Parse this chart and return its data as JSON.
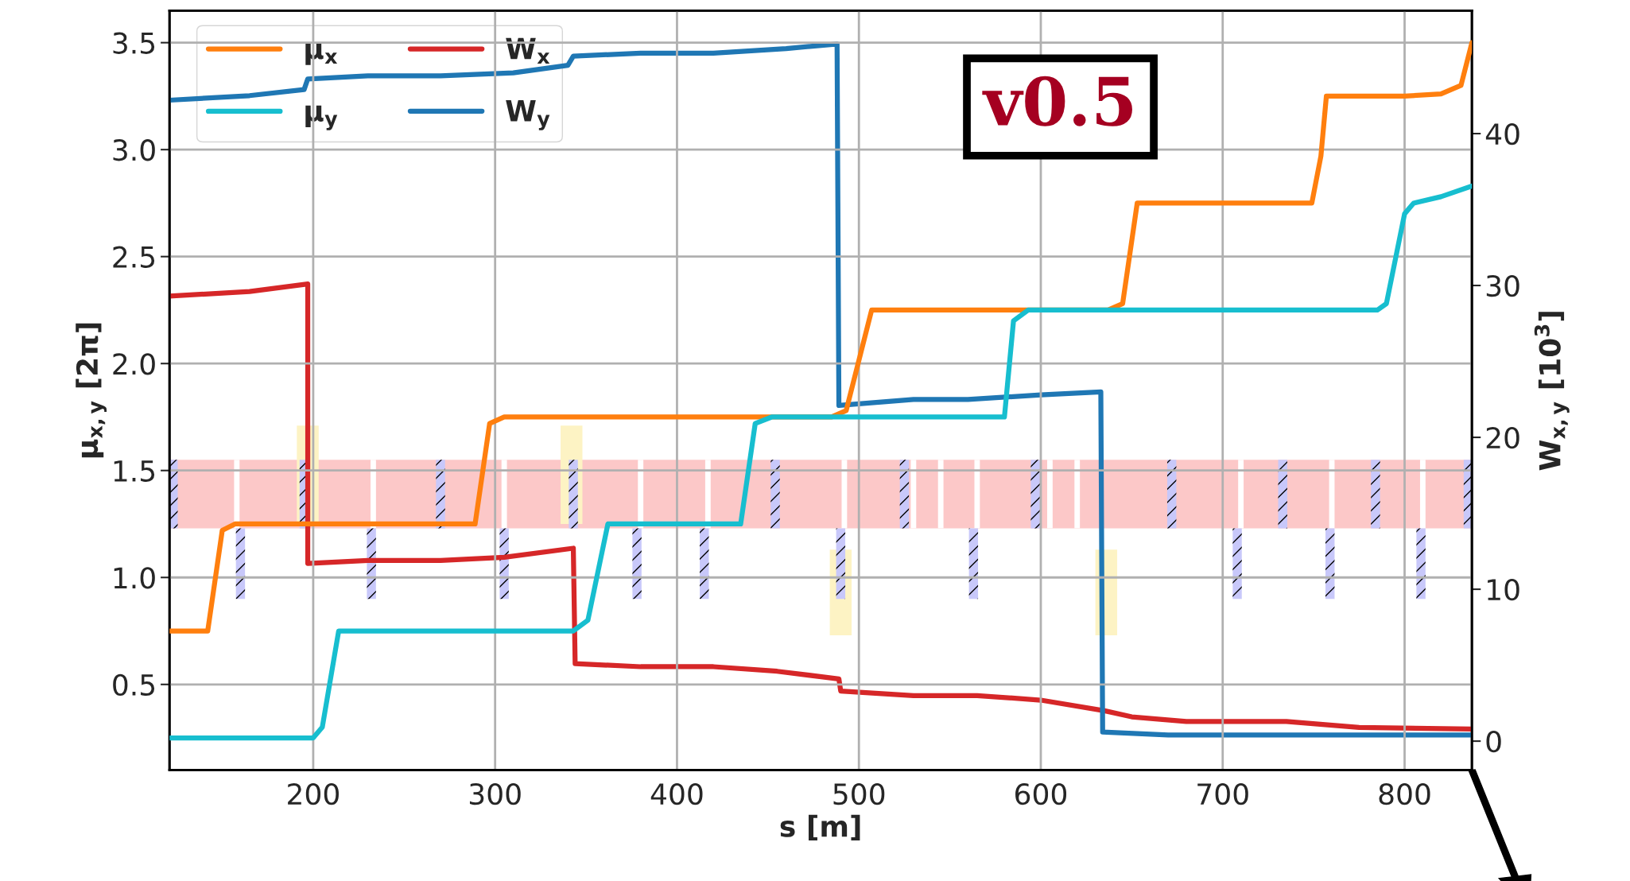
{
  "chart_data": {
    "type": "line",
    "xlabel": "s [m]",
    "ylabel": "μ$_{x,y}$ [2π]",
    "y2label": "W$_{x,y}$ [10$^{3}$]",
    "xlim": [
      121,
      837
    ],
    "xticks": [
      200,
      300,
      400,
      500,
      600,
      700,
      800
    ],
    "ylim": [
      0.1,
      3.65
    ],
    "yticks": [
      0.5,
      {
        "value": 1,
        "label": "1.0"
      },
      1.5,
      {
        "value": 2,
        "label": "2.0"
      },
      2.5,
      {
        "value": 3,
        "label": "3.0"
      },
      3.5
    ],
    "y2lim": [
      -1.9,
      48.1
    ],
    "y2ticks": [
      0,
      10,
      20,
      30,
      40
    ],
    "grid": true,
    "legend": "top left",
    "marker": "none",
    "line_style": "solid",
    "annotations": [
      "v0.5"
    ],
    "series": [
      {
        "name": "μ$_{x}$",
        "color": "#ff7f0e",
        "x": [
          121,
          142,
          150,
          157,
          289,
          297,
          305,
          485,
          493,
          507,
          637,
          645,
          653,
          749,
          754,
          757,
          800,
          820,
          831,
          837
        ],
        "values": [
          0.75,
          0.75,
          1.22,
          1.25,
          1.25,
          1.72,
          1.75,
          1.75,
          1.78,
          2.25,
          2.25,
          2.28,
          2.75,
          2.75,
          2.97,
          3.25,
          3.25,
          3.26,
          3.3,
          3.5
        ]
      },
      {
        "name": "μ$_{y}$",
        "color": "#17becf",
        "x": [
          121,
          200,
          205,
          214,
          343,
          351,
          362,
          435,
          443,
          452,
          580,
          585,
          593,
          785,
          790,
          800,
          805,
          820,
          837
        ],
        "values": [
          0.25,
          0.25,
          0.3,
          0.75,
          0.75,
          0.8,
          1.25,
          1.25,
          1.72,
          1.75,
          1.75,
          2.2,
          2.25,
          2.25,
          2.28,
          2.7,
          2.75,
          2.78,
          2.83
        ]
      },
      {
        "name": "W$_{x}$",
        "color": "#d62728",
        "axis": "y2",
        "x": [
          121,
          165,
          197,
          197,
          230,
          270,
          305,
          343,
          344,
          380,
          420,
          455,
          489,
          490,
          530,
          565,
          600,
          635,
          650,
          680,
          735,
          775,
          837
        ],
        "values": [
          29.3,
          29.6,
          30.1,
          11.7,
          11.9,
          11.9,
          12.1,
          12.7,
          5.1,
          4.9,
          4.9,
          4.6,
          4.1,
          3.3,
          3.0,
          3.0,
          2.7,
          2.0,
          1.6,
          1.3,
          1.3,
          0.9,
          0.8
        ]
      },
      {
        "name": "W$_{y}$",
        "color": "#1f77b4",
        "axis": "y2",
        "x": [
          121,
          165,
          195,
          197,
          230,
          270,
          310,
          340,
          343,
          380,
          420,
          460,
          488,
          489,
          530,
          560,
          600,
          633,
          634,
          670,
          837
        ],
        "values": [
          42.2,
          42.5,
          42.9,
          43.6,
          43.8,
          43.8,
          44.0,
          44.5,
          45.1,
          45.3,
          45.3,
          45.6,
          45.9,
          22.1,
          22.5,
          22.5,
          22.8,
          23.0,
          0.6,
          0.4,
          0.4
        ]
      }
    ]
  }
}
